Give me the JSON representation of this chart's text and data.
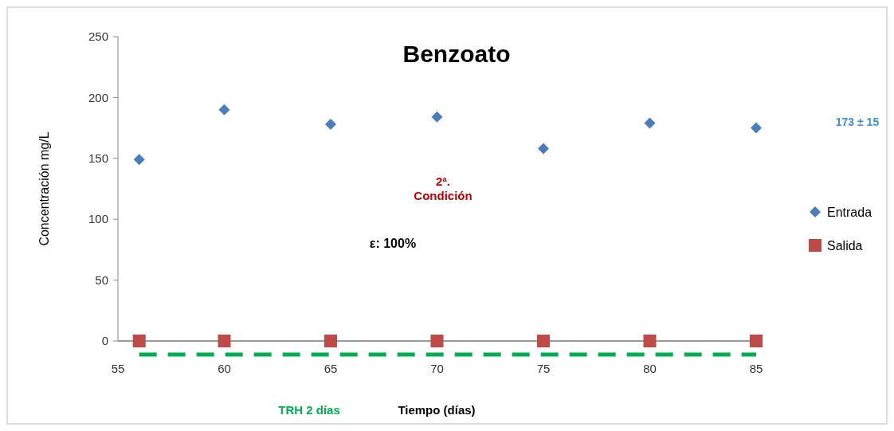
{
  "chart_data": {
    "type": "scatter",
    "title": "Benzoato",
    "xlabel": "Tiempo (días)",
    "ylabel": "Concentración mg/L",
    "x": [
      56,
      60,
      65,
      70,
      75,
      80,
      85
    ],
    "series": [
      {
        "name": "Entrada",
        "color": "#4a7ebb",
        "marker": "diamond",
        "values": [
          149,
          190,
          178,
          184,
          158,
          179,
          175
        ]
      },
      {
        "name": "Salida",
        "color": "#be4b48",
        "marker": "square",
        "values": [
          0,
          0,
          0,
          0,
          0,
          0,
          0
        ]
      }
    ],
    "xlim": [
      55,
      85
    ],
    "xticks": [
      55,
      60,
      65,
      70,
      75,
      80,
      85
    ],
    "ylim": [
      0,
      250
    ],
    "yticks": [
      0,
      50,
      100,
      150,
      200,
      250
    ],
    "annotations": [
      "2ª. Condición",
      "ε: 100%",
      "173 ± 15",
      "TRH 2 días"
    ],
    "grid": false,
    "legend": "right"
  }
}
